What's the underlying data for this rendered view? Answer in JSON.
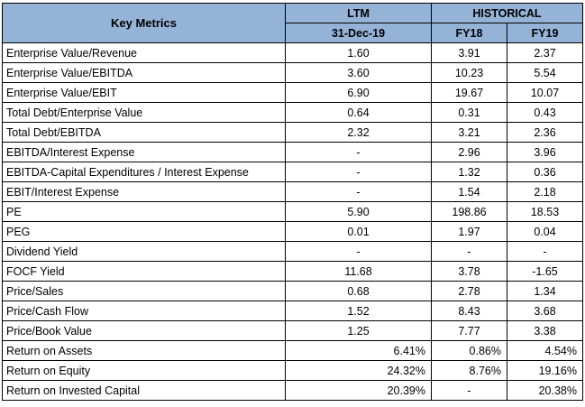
{
  "table": {
    "header": {
      "key_metrics": "Key Metrics",
      "ltm": "LTM",
      "historical": "HISTORICAL",
      "ltm_date": "31-Dec-19",
      "fy18": "FY18",
      "fy19": "FY19"
    },
    "rows": [
      {
        "metric": "Enterprise Value/Revenue",
        "ltm": "1.60",
        "fy18": "3.91",
        "fy19": "2.37"
      },
      {
        "metric": "Enterprise Value/EBITDA",
        "ltm": "3.60",
        "fy18": "10.23",
        "fy19": "5.54"
      },
      {
        "metric": "Enterprise Value/EBIT",
        "ltm": "6.90",
        "fy18": "19.67",
        "fy19": "10.07"
      },
      {
        "metric": "Total Debt/Enterprise Value",
        "ltm": "0.64",
        "fy18": "0.31",
        "fy19": "0.43"
      },
      {
        "metric": "Total Debt/EBITDA",
        "ltm": "2.32",
        "fy18": "3.21",
        "fy19": "2.36"
      },
      {
        "metric": "EBITDA/Interest Expense",
        "ltm": "-",
        "fy18": "2.96",
        "fy19": "3.96"
      },
      {
        "metric": "EBITDA-Capital Expenditures / Interest Expense",
        "ltm": "-",
        "fy18": "1.32",
        "fy19": "0.36"
      },
      {
        "metric": "EBIT/Interest Expense",
        "ltm": "-",
        "fy18": "1.54",
        "fy19": "2.18"
      },
      {
        "metric": "PE",
        "ltm": "5.90",
        "fy18": "198.86",
        "fy19": "18.53"
      },
      {
        "metric": "PEG",
        "ltm": "0.01",
        "fy18": "1.97",
        "fy19": "0.04"
      },
      {
        "metric": "Dividend Yield",
        "ltm": "-",
        "fy18": "-",
        "fy19": "-"
      },
      {
        "metric": "FOCF Yield",
        "ltm": "11.68",
        "fy18": "3.78",
        "fy19": "-1.65"
      },
      {
        "metric": "Price/Sales",
        "ltm": "0.68",
        "fy18": "2.78",
        "fy19": "1.34"
      },
      {
        "metric": "Price/Cash Flow",
        "ltm": "1.52",
        "fy18": "8.43",
        "fy19": "3.68"
      },
      {
        "metric": "Price/Book Value",
        "ltm": "1.25",
        "fy18": "7.77",
        "fy19": "3.38"
      },
      {
        "metric": "Return on Assets",
        "ltm": "6.41%",
        "fy18": "0.86%",
        "fy19": "4.54%"
      },
      {
        "metric": "Return on Equity",
        "ltm": "24.32%",
        "fy18": "8.76%",
        "fy19": "19.16%"
      },
      {
        "metric": "Return on Invested Capital",
        "ltm": "20.39%",
        "fy18": "-",
        "fy19": "20.38%"
      }
    ],
    "colors": {
      "header_fill": "#95b3d7",
      "border": "#000000"
    }
  }
}
